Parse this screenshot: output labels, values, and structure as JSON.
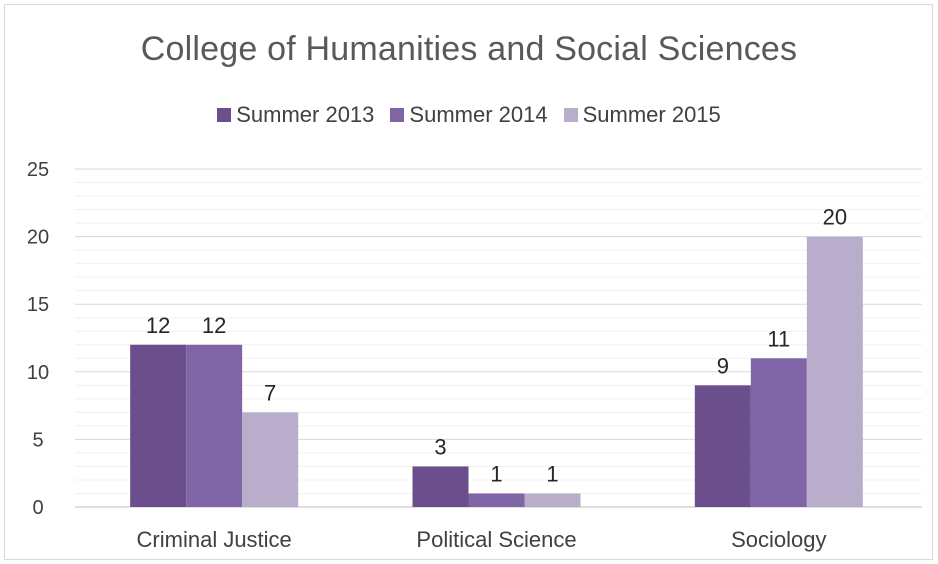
{
  "chart_data": {
    "type": "bar",
    "title": "College of Humanities and Social Sciences",
    "categories": [
      "Criminal Justice",
      "Political Science",
      "Sociology"
    ],
    "series": [
      {
        "name": "Summer 2013",
        "values": [
          12,
          3,
          9
        ],
        "color": "#6a4f8c"
      },
      {
        "name": "Summer 2014",
        "values": [
          12,
          1,
          11
        ],
        "color": "#7f65a6"
      },
      {
        "name": "Summer 2015",
        "values": [
          7,
          1,
          20
        ],
        "color": "#b8aecb"
      }
    ],
    "y_ticks": [
      "0",
      "5",
      "10",
      "15",
      "20",
      "25"
    ],
    "ylim": [
      0,
      25
    ],
    "grid": true,
    "legend_position": "top"
  }
}
